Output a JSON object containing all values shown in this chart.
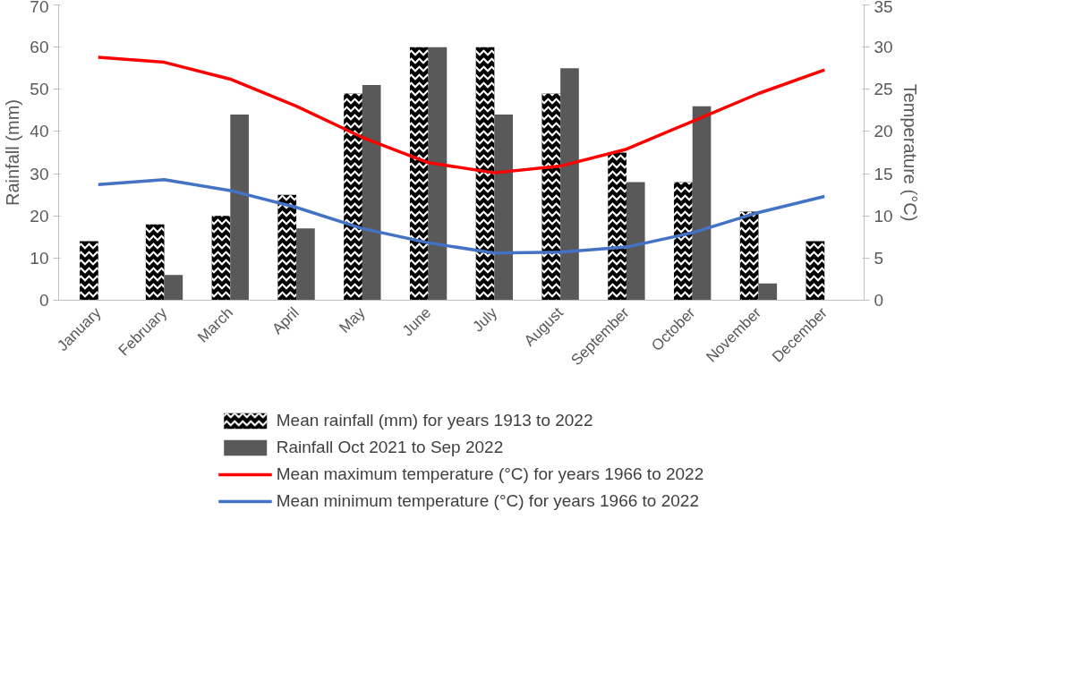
{
  "chart_data": {
    "type": "bar",
    "ylabel": "Rainfall (mm)",
    "y2label": "Temperature (°C)",
    "categories": [
      "January",
      "February",
      "March",
      "April",
      "May",
      "June",
      "July",
      "August",
      "September",
      "October",
      "November",
      "December"
    ],
    "ylim": [
      0,
      70
    ],
    "yticks": [
      0,
      10,
      20,
      30,
      40,
      50,
      60,
      70
    ],
    "y2lim": [
      0,
      35
    ],
    "y2ticks": [
      0,
      5,
      10,
      15,
      20,
      25,
      30,
      35
    ],
    "grid": false,
    "legend": "bottom",
    "series": [
      {
        "name": "Mean rainfall (mm) for years 1913 to 2022",
        "color": "#000000",
        "values": [
          14,
          18,
          20,
          25,
          49,
          60,
          60,
          49,
          35,
          28,
          21,
          14
        ]
      },
      {
        "name": "Rainfall Oct 2021 to Sep 2022",
        "color": "#595959",
        "values": [
          null,
          6,
          44,
          17,
          51,
          60,
          44,
          55,
          28,
          46,
          4,
          null
        ]
      },
      {
        "name": "Mean maximum temperature (°C) for years 1966 to 2022",
        "type": "line",
        "axis": "y2",
        "color": "#ff0000",
        "values": [
          28.8,
          28.2,
          26.2,
          23,
          19.3,
          16.3,
          15.1,
          15.9,
          17.9,
          21.2,
          24.5,
          27.3
        ]
      },
      {
        "name": "Mean minimum temperature (°C) for years 1966 to 2022",
        "type": "line",
        "axis": "y2",
        "color": "#4472c4",
        "values": [
          13.7,
          14.3,
          13,
          11,
          8.5,
          6.8,
          5.6,
          5.7,
          6.3,
          8,
          10.4,
          12.3
        ]
      }
    ]
  }
}
